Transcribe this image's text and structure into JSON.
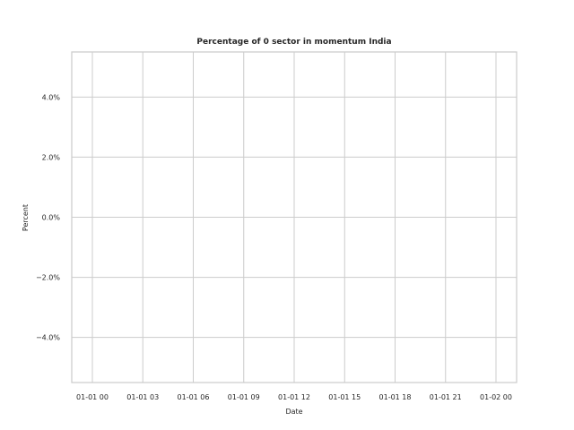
{
  "chart_data": {
    "type": "line",
    "title": "Percentage of 0 sector in momentum India",
    "xlabel": "Date",
    "ylabel": "Percent",
    "x_ticks": [
      "01-01 00",
      "01-01 03",
      "01-01 06",
      "01-01 09",
      "01-01 12",
      "01-01 15",
      "01-01 18",
      "01-01 21",
      "01-02 00"
    ],
    "y_ticks": [
      {
        "value": 4.0,
        "label": "4.0%"
      },
      {
        "value": 2.0,
        "label": "2.0%"
      },
      {
        "value": 0.0,
        "label": "0.0%"
      },
      {
        "value": -2.0,
        "label": "−2.0%"
      },
      {
        "value": -4.0,
        "label": "−4.0%"
      }
    ],
    "ylim": [
      -5.5,
      5.5
    ],
    "grid": true,
    "series": []
  }
}
